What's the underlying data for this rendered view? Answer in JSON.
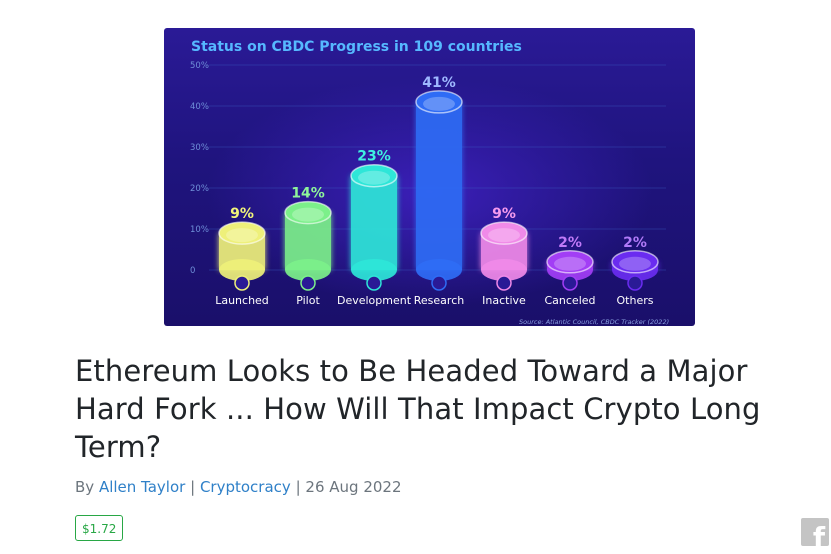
{
  "article_image": {
    "chart_data": {
      "type": "bar",
      "title": "Status on CBDC Progress in 109 countries",
      "categories": [
        "Launched",
        "Pilot",
        "Development",
        "Research",
        "Inactive",
        "Canceled",
        "Others"
      ],
      "values": [
        9,
        14,
        23,
        41,
        9,
        2,
        2
      ],
      "value_labels": [
        "9%",
        "14%",
        "23%",
        "41%",
        "9%",
        "2%",
        "2%"
      ],
      "colors": [
        "#eef07a",
        "#7cf08a",
        "#2ee6d8",
        "#2f6cf5",
        "#f08ae8",
        "#a23ef5",
        "#6a2cf0"
      ],
      "label_colors": [
        "#f2f57a",
        "#8ff59a",
        "#3ff0e0",
        "#9fb8ff",
        "#f59aee",
        "#c07af8",
        "#b07af8"
      ],
      "y_ticks": [
        "0",
        "10%",
        "20%",
        "30%",
        "40%",
        "50%"
      ],
      "ylim": [
        0,
        50
      ],
      "grid": true,
      "source": "Source: Atlantic Council, CBDC Tracker (2022)"
    }
  },
  "article": {
    "title": "Ethereum Looks to Be Headed Toward a Major Hard Fork ... How Will That Impact Crypto Long Term?",
    "by_prefix": "By",
    "author": "Allen Taylor",
    "separator": "|",
    "category": "Cryptocracy",
    "date": "26 Aug 2022",
    "price": "$1.72"
  },
  "share": {
    "facebook_glyph": "f",
    "icon": "facebook-icon"
  }
}
